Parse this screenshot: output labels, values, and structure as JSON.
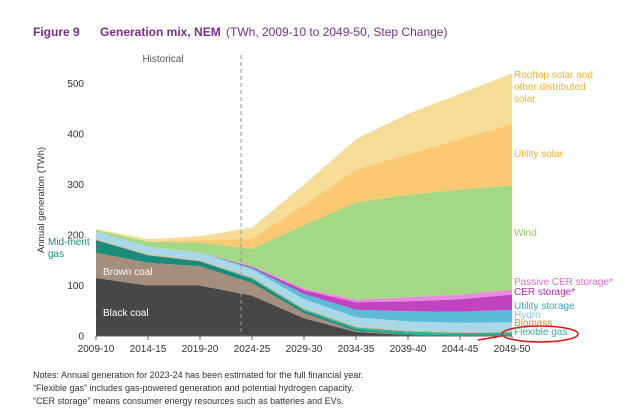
{
  "figure_label": "Figure 9",
  "chart_data": {
    "type": "stacked-area",
    "title": "Generation mix, NEM",
    "subtitle": "(TWh, 2009-10 to 2049-50, Step Change)",
    "y_label": "Annual generation (TWh)",
    "annotation": "Historical",
    "categories": [
      "2009-10",
      "2014-15",
      "2019-20",
      "2024-25",
      "2029-30",
      "2034-35",
      "2039-40",
      "2044-45",
      "2049-50"
    ],
    "ylim": [
      0,
      525
    ],
    "yticks": [
      0,
      100,
      200,
      300,
      400,
      500
    ],
    "grid": false,
    "series": [
      {
        "name": "Black coal",
        "color": "#474747",
        "values": [
          115,
          100,
          100,
          80,
          35,
          8,
          2,
          0,
          0
        ]
      },
      {
        "name": "Brown coal",
        "color": "#a58e7c",
        "values": [
          50,
          45,
          38,
          25,
          10,
          2,
          0,
          0,
          0
        ]
      },
      {
        "name": "Mid-merit gas",
        "color": "#1b8b7c",
        "values": [
          25,
          15,
          10,
          8,
          5,
          3,
          2,
          1,
          1
        ]
      },
      {
        "name": "Flexible gas",
        "color": "#2db39d",
        "values": [
          0,
          0,
          0,
          2,
          3,
          4,
          5,
          5,
          6
        ]
      },
      {
        "name": "Biomass",
        "color": "#e2b07a",
        "values": [
          2,
          2,
          2,
          2,
          2,
          2,
          2,
          2,
          2
        ]
      },
      {
        "name": "Hydro",
        "color": "#a9d9e9",
        "values": [
          15,
          15,
          15,
          15,
          18,
          18,
          18,
          18,
          18
        ]
      },
      {
        "name": "Utility storage",
        "color": "#5cbbd6",
        "values": [
          0,
          0,
          0,
          3,
          10,
          15,
          20,
          22,
          25
        ]
      },
      {
        "name": "CER storage*",
        "color": "#c043c2",
        "values": [
          0,
          0,
          0,
          2,
          8,
          15,
          20,
          25,
          30
        ]
      },
      {
        "name": "Passive CER storage*",
        "color": "#e88bdc",
        "values": [
          0,
          0,
          0,
          1,
          3,
          5,
          8,
          9,
          10
        ]
      },
      {
        "name": "Wind",
        "color": "#a4d884",
        "values": [
          3,
          10,
          20,
          35,
          126,
          193,
          203,
          208,
          206
        ]
      },
      {
        "name": "Utility solar",
        "color": "#fbc974",
        "values": [
          0,
          0,
          5,
          20,
          40,
          65,
          80,
          100,
          122
        ]
      },
      {
        "name": "Rooftop solar and other distributed solar",
        "color": "#f6dd96",
        "values": [
          2,
          5,
          8,
          22,
          40,
          60,
          80,
          90,
          100
        ]
      }
    ]
  },
  "notes": [
    "Notes: Annual generation for 2023-24 has been estimated for the full financial year.",
    "“Flexible gas” includes gas-powered generation and potential hydrogen capacity.",
    "“CER storage” means consumer energy resources such as batteries and EVs."
  ]
}
